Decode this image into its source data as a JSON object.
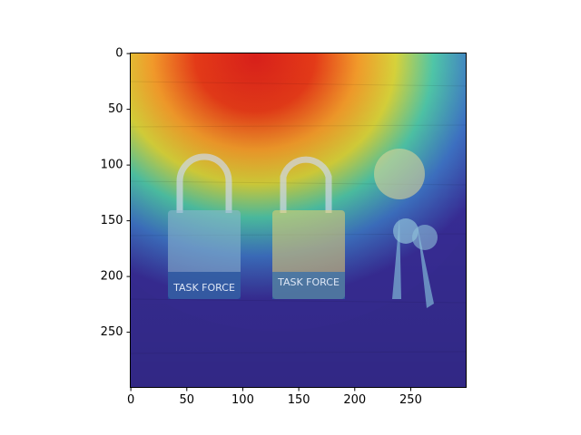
{
  "chart_data": {
    "type": "image",
    "xlim": [
      -0.5,
      299.5
    ],
    "ylim": [
      299.5,
      -0.5
    ],
    "xticks": [
      0,
      50,
      100,
      150,
      200,
      250
    ],
    "yticks": [
      0,
      50,
      100,
      150,
      200,
      250
    ],
    "annotations": [
      "TASK FORCE",
      "TASK FORCE"
    ]
  }
}
